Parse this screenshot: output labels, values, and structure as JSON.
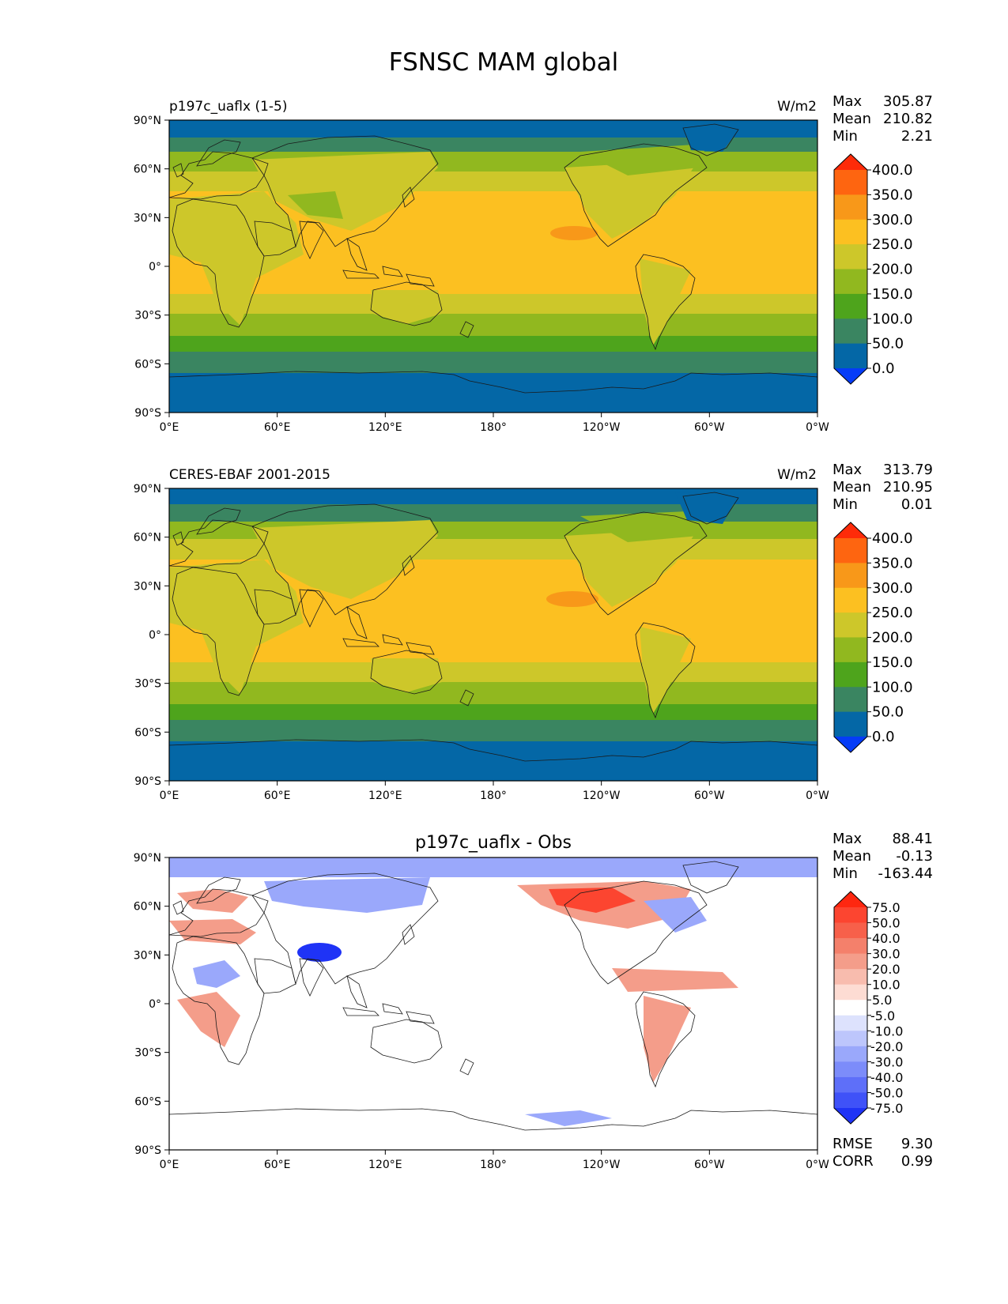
{
  "figure": {
    "title": "FSNSC MAM global"
  },
  "lat_ticks": [
    "90°N",
    "60°N",
    "30°N",
    "0°",
    "30°S",
    "60°S",
    "90°S"
  ],
  "lon_ticks": [
    "0°E",
    "60°E",
    "120°E",
    "180°",
    "120°W",
    "60°W",
    "0°W"
  ],
  "panels": [
    {
      "left_title": "p197c_uaflx (1-5)",
      "center_title": "",
      "units": "W/m2",
      "stats": {
        "max_label": "Max",
        "max": "305.87",
        "mean_label": "Mean",
        "mean": "210.82",
        "min_label": "Min",
        "min": "2.21"
      },
      "colorbar": {
        "labels": [
          "400.0",
          "350.0",
          "300.0",
          "250.0",
          "200.0",
          "150.0",
          "100.0",
          "50.0",
          "0.0"
        ],
        "colors": [
          "#fe2b09",
          "#fe6510",
          "#f89819",
          "#fcc021",
          "#cdc72a",
          "#91b81f",
          "#4ea41c",
          "#3a8561",
          "#0467a6",
          "#053cf7"
        ]
      }
    },
    {
      "left_title": "CERES-EBAF 2001-2015",
      "center_title": "",
      "units": "W/m2",
      "stats": {
        "max_label": "Max",
        "max": "313.79",
        "mean_label": "Mean",
        "mean": "210.95",
        "min_label": "Min",
        "min": "0.01"
      },
      "colorbar": {
        "labels": [
          "400.0",
          "350.0",
          "300.0",
          "250.0",
          "200.0",
          "150.0",
          "100.0",
          "50.0",
          "0.0"
        ],
        "colors": [
          "#fe2b09",
          "#fe6510",
          "#f89819",
          "#fcc021",
          "#cdc72a",
          "#91b81f",
          "#4ea41c",
          "#3a8561",
          "#0467a6",
          "#053cf7"
        ]
      }
    },
    {
      "left_title": "",
      "center_title": "p197c_uaflx - Obs",
      "units": "",
      "stats": {
        "max_label": "Max",
        "max": "88.41",
        "mean_label": "Mean",
        "mean": "-0.13",
        "min_label": "Min",
        "min": "-163.44"
      },
      "colorbar": {
        "labels": [
          "75.0",
          "50.0",
          "40.0",
          "30.0",
          "20.0",
          "10.0",
          "5.0",
          "-5.0",
          "-10.0",
          "-20.0",
          "-30.0",
          "-40.0",
          "-50.0",
          "-75.0"
        ],
        "colors": [
          "#fe2710",
          "#fc4530",
          "#f7604a",
          "#f4806b",
          "#f49d8a",
          "#f8bcae",
          "#fddcd3",
          "#ffffff",
          "#dde2fd",
          "#bdc6fc",
          "#9aa8fb",
          "#7c8cfa",
          "#5e6ff9",
          "#3f52f8",
          "#1f33f6"
        ]
      },
      "footer": {
        "rmse_label": "RMSE",
        "rmse": "9.30",
        "corr_label": "CORR",
        "corr": "0.99"
      }
    }
  ],
  "map_colors": {
    "polar": "#0467a6",
    "cold": "#3a8561",
    "cool": "#4ea41c",
    "mid": "#91b81f",
    "warm": "#cdc72a",
    "tropic": "#fcc021",
    "hot": "#f89819",
    "diff_background": "#ffffff",
    "diff_pos": "#f49d8a",
    "diff_strong_pos": "#fc4530",
    "diff_neg": "#9aa8fb",
    "diff_strong_neg": "#1f33f6"
  }
}
